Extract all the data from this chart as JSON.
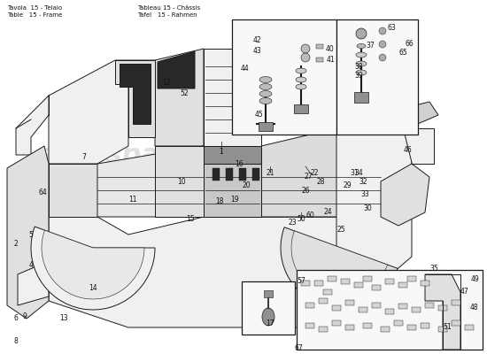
{
  "bg_color": "#ffffff",
  "line_color": "#1a1a1a",
  "title_left": "Tavola  15 - Telaio",
  "title_left2": "Table   15 - Frame",
  "title_right": "Tableau 15 - Châssis",
  "title_right2": "Tafel   15 - Rahmen",
  "watermark": "eurospares",
  "watermark_color": "#c8c8c8",
  "lw": 0.7,
  "chassis_fill": "#f0f0f0",
  "chassis_fill2": "#e0e0e0",
  "chassis_fill3": "#d0d0d0",
  "chassis_dark": "#909090",
  "chassis_black": "#282828",
  "inset_fill": "#f8f8f8"
}
